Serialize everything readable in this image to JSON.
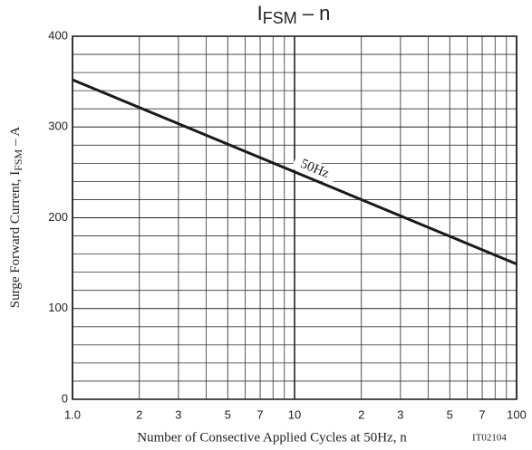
{
  "chart_data": {
    "type": "line",
    "title": {
      "main": "I",
      "sub": "FSM",
      "rest": " – n"
    },
    "ylabel": {
      "main": "Surge Forward Current, I",
      "sub": "FSM",
      "rest": " – A"
    },
    "xlabel": "Number of Consective Applied Cycles at 50Hz, n",
    "code": "IT02104",
    "x": [
      1,
      100
    ],
    "series": [
      {
        "name": "50Hz",
        "color": "#1a1a1a",
        "values": [
          352,
          149
        ]
      }
    ],
    "xscale": "log",
    "xlim": [
      1,
      100
    ],
    "ylim": [
      0,
      400
    ],
    "xticks": [
      {
        "value": 1,
        "label": "1.0"
      },
      2,
      3,
      5,
      7,
      10,
      {
        "value": 20,
        "label": "2"
      },
      {
        "value": 30,
        "label": "3"
      },
      {
        "value": 50,
        "label": "5"
      },
      {
        "value": 70,
        "label": "7"
      },
      100
    ],
    "yticks": [
      0,
      100,
      200,
      300,
      400
    ],
    "x_minor_grid": [
      4,
      6,
      8,
      9,
      40,
      60,
      80,
      90
    ],
    "y_minor_grid": [
      20,
      40,
      60,
      80,
      120,
      140,
      160,
      180,
      220,
      240,
      260,
      280,
      320,
      340,
      360,
      380
    ],
    "grid": true
  }
}
